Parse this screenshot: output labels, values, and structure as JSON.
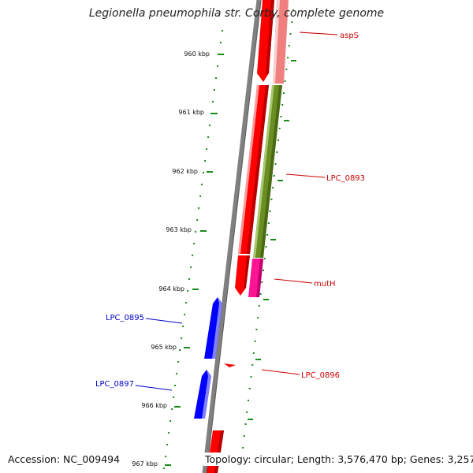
{
  "title": "Legionella pneumophila str. Corby, complete genome",
  "footer": {
    "accession": "Accession: NC_009494",
    "topology": "Topology: circular; Length: 3,576,470 bp; Genes: 3,257"
  },
  "colors": {
    "forward_cds": "#ff0000",
    "forward_cds_shade": "#b80000",
    "reverse_cds": "#0000ff",
    "reverse_cds_shade": "#00009a",
    "rna_light": "#f08080",
    "olive_feature": "#6b8e23",
    "olive_feature_shade": "#4a6a14",
    "magenta_feature": "#ff1493",
    "gc_skew_dots": "#1a8a1a",
    "backbone": "#808080",
    "label_forward": "#cc0000",
    "label_reverse": "#0000cc"
  },
  "ticks": [
    "960 kbp",
    "961 kbp",
    "962 kbp",
    "963 kbp",
    "964 kbp",
    "965 kbp",
    "966 kbp",
    "967 kbp"
  ],
  "features": [
    {
      "label": "aspS",
      "strand": "forward"
    },
    {
      "label": "LPC_0893",
      "strand": "forward"
    },
    {
      "label": "mutH",
      "strand": "forward"
    },
    {
      "label": "LPC_0896",
      "strand": "forward"
    },
    {
      "label": "LPC_0895",
      "strand": "reverse"
    },
    {
      "label": "LPC_0897",
      "strand": "reverse"
    }
  ]
}
